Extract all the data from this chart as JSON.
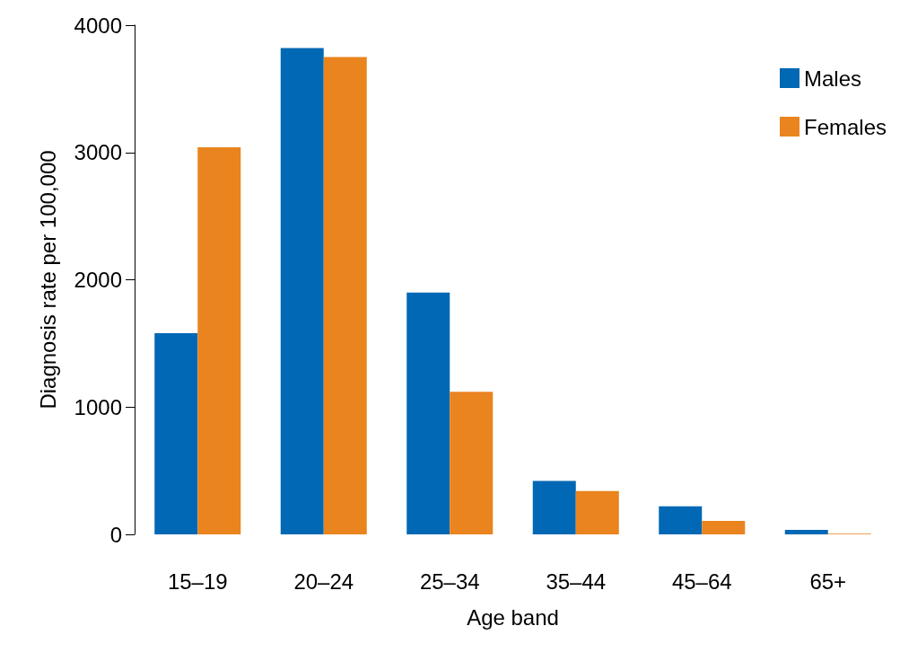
{
  "chart_data": {
    "type": "bar",
    "xlabel": "Age band",
    "ylabel": "Diagnosis rate per 100,000",
    "categories": [
      "15–19",
      "20–24",
      "25–34",
      "35–44",
      "45–64",
      "65+"
    ],
    "series": [
      {
        "name": "Males",
        "color": "#0068b4",
        "values": [
          1580,
          3820,
          1900,
          420,
          220,
          35
        ]
      },
      {
        "name": "Females",
        "color": "#e9841e",
        "values": [
          3040,
          3750,
          1120,
          340,
          105,
          5
        ]
      }
    ],
    "ylim": [
      0,
      4000
    ],
    "yticks": [
      0,
      1000,
      2000,
      3000,
      4000
    ],
    "grid": false,
    "legend": "top right"
  }
}
